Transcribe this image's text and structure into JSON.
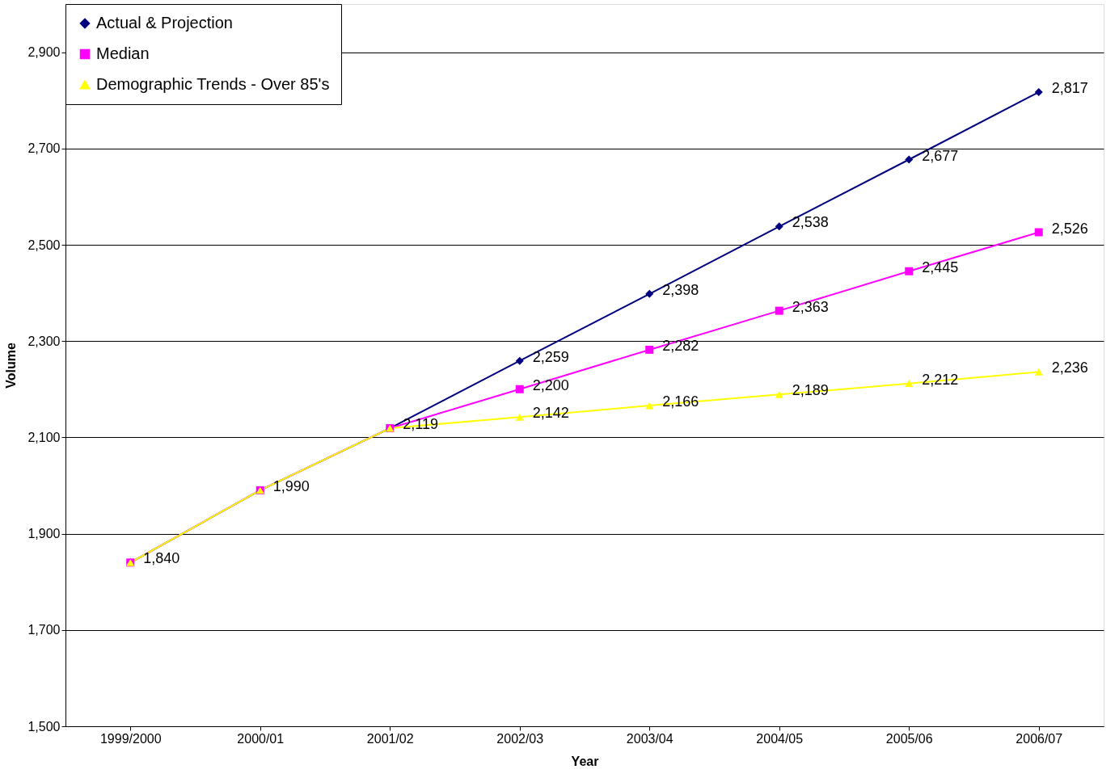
{
  "chart_data": {
    "type": "line",
    "xlabel": "Year",
    "ylabel": "Volume",
    "categories": [
      "1999/2000",
      "2000/01",
      "2001/02",
      "2002/03",
      "2003/04",
      "2004/05",
      "2005/06",
      "2006/07"
    ],
    "series": [
      {
        "name": "Actual & Projection",
        "color": "#000080",
        "marker": "diamond",
        "values": [
          1840,
          1990,
          2119,
          2259,
          2398,
          2538,
          2677,
          2817
        ],
        "value_labels": [
          "1,840",
          "1,990",
          "2,119",
          "2,259",
          "2,398",
          "2,538",
          "2,677",
          "2,817"
        ]
      },
      {
        "name": "Median",
        "color": "#ff00ff",
        "marker": "square",
        "values": [
          1840,
          1990,
          2119,
          2200,
          2282,
          2363,
          2445,
          2526
        ],
        "value_labels": [
          null,
          null,
          null,
          "2,200",
          "2,282",
          "2,363",
          "2,445",
          "2,526"
        ]
      },
      {
        "name": "Demographic Trends - Over 85's",
        "color": "#ffff00",
        "marker": "triangle",
        "values": [
          1840,
          1990,
          2119,
          2142,
          2166,
          2189,
          2212,
          2236
        ],
        "value_labels": [
          null,
          null,
          null,
          "2,142",
          "2,166",
          "2,189",
          "2,212",
          "2,236"
        ]
      }
    ],
    "ylim": [
      1500,
      3000
    ],
    "yticks": [
      {
        "value": 1500,
        "label": "1,500"
      },
      {
        "value": 1700,
        "label": "1,700"
      },
      {
        "value": 1900,
        "label": "1,900"
      },
      {
        "value": 2100,
        "label": "2,100"
      },
      {
        "value": 2300,
        "label": "2,300"
      },
      {
        "value": 2500,
        "label": "2,500"
      },
      {
        "value": 2700,
        "label": "2,700"
      },
      {
        "value": 2900,
        "label": "2,900"
      }
    ],
    "grid": "y",
    "legend": "top left",
    "line_style": "solid"
  }
}
